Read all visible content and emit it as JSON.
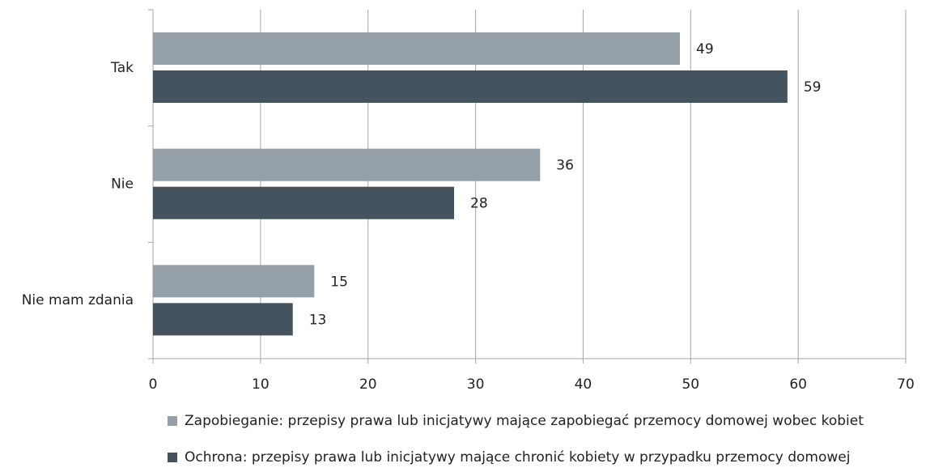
{
  "chart_data": {
    "type": "bar",
    "orientation": "horizontal",
    "categories": [
      "Tak",
      "Nie",
      "Nie mam zdania"
    ],
    "series": [
      {
        "name": "Zapobieganie: przepisy prawa lub inicjatywy mające zapobiegać przemocy domowej wobec kobiet",
        "color": "#949fa7",
        "values": [
          49,
          36,
          15
        ]
      },
      {
        "name": "Ochrona: przepisy prawa lub inicjatywy mające chronić kobiety w przypadku przemocy domowej",
        "color": "#44535e",
        "values": [
          59,
          28,
          13
        ]
      }
    ],
    "xlim": [
      0,
      70
    ],
    "xticks": [
      0,
      10,
      20,
      30,
      40,
      50,
      60,
      70
    ],
    "grid": true,
    "legend": "bottom"
  }
}
